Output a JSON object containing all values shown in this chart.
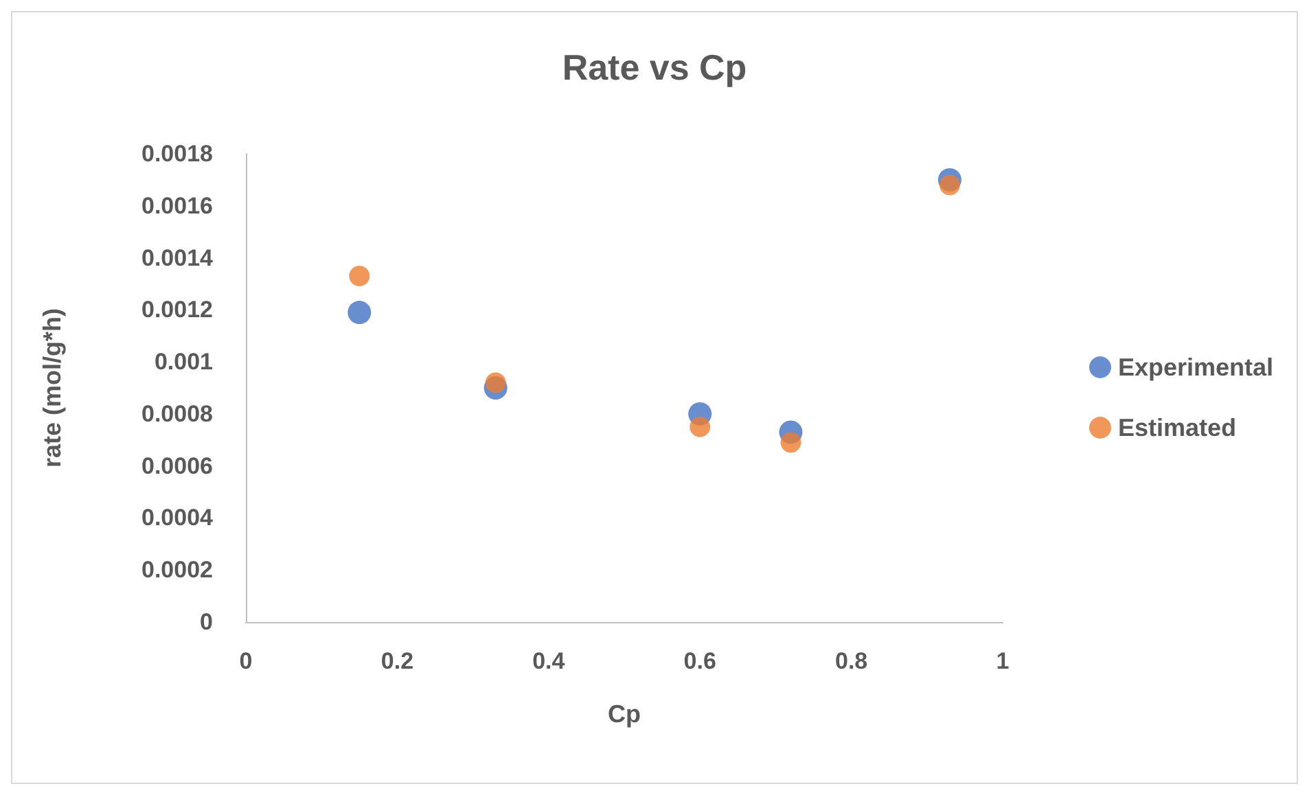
{
  "chart_data": {
    "type": "scatter",
    "title": "Rate vs Cp",
    "xlabel": "Cp",
    "ylabel": "rate (mol/g*h)",
    "x": [
      0.15,
      0.33,
      0.6,
      0.72,
      0.93
    ],
    "series": [
      {
        "name": "Experimental",
        "color": "#4472c4",
        "values": [
          0.00119,
          0.0009,
          0.0008,
          0.00073,
          0.0017
        ]
      },
      {
        "name": "Estimated",
        "color": "#ed7d31",
        "values": [
          0.00133,
          0.00092,
          0.00075,
          0.00069,
          0.00168
        ]
      }
    ],
    "xlim": [
      0,
      1
    ],
    "xticks": [
      0,
      0.2,
      0.4,
      0.6,
      0.8,
      1
    ],
    "ylim": [
      0,
      0.0018
    ],
    "yticks": [
      0,
      0.0002,
      0.0004,
      0.0006,
      0.0008,
      0.001,
      0.0012,
      0.0014,
      0.0016,
      0.0018
    ],
    "grid": false,
    "legend": "right",
    "marker": "circle"
  }
}
